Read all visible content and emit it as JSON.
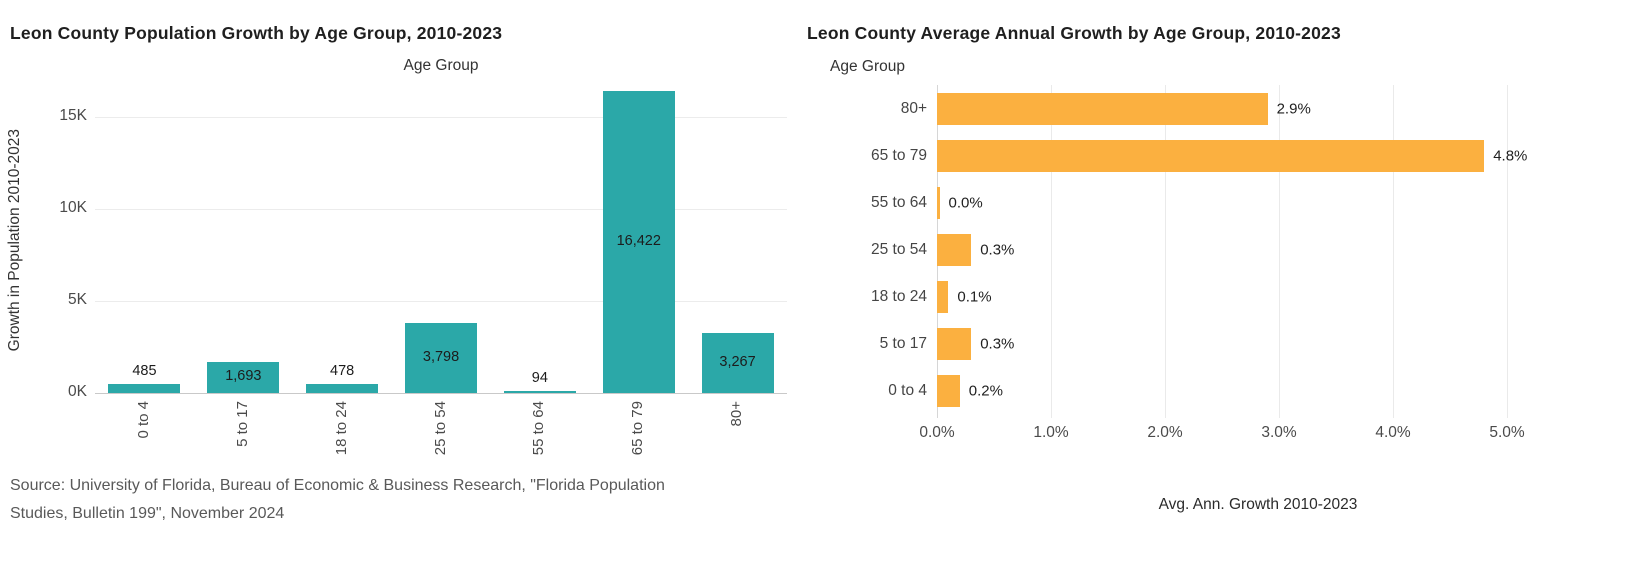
{
  "chart_data": [
    {
      "type": "bar",
      "title": "Leon County Population Growth by Age Group, 2010-2023",
      "xlabel": "Age Group",
      "ylabel": "Growth in Population 2010-2023",
      "categories": [
        "0 to 4",
        "5 to 17",
        "18 to 24",
        "25 to 54",
        "55 to 64",
        "65 to 79",
        "80+"
      ],
      "values": [
        485,
        1693,
        478,
        3798,
        94,
        16422,
        3267
      ],
      "value_labels": [
        "485",
        "1,693",
        "478",
        "3,798",
        "94",
        "16,422",
        "3,267"
      ],
      "yticks": [
        "0K",
        "5K",
        "10K",
        "15K"
      ],
      "ytick_values": [
        0,
        5000,
        10000,
        15000
      ],
      "ylim": [
        0,
        16600
      ],
      "gridlines": "horizontal",
      "legend": "none",
      "bar_color": "#2BA8A8",
      "source_lines": [
        "Source: University of Florida, Bureau of Economic & Business Research, \"Florida Population",
        "Studies, Bulletin 199\", November 2024"
      ]
    },
    {
      "type": "bar-horizontal",
      "title": "Leon County Average Annual Growth by Age Group, 2010-2023",
      "category_axis_label": "Age Group",
      "xlabel": "Avg. Ann. Growth 2010-2023",
      "categories": [
        "80+",
        "65 to 79",
        "55 to 64",
        "25 to 54",
        "18 to 24",
        "5 to 17",
        "0 to 4"
      ],
      "values": [
        2.9,
        4.8,
        0.0,
        0.3,
        0.1,
        0.3,
        0.2
      ],
      "value_labels": [
        "2.9%",
        "4.8%",
        "0.0%",
        "0.3%",
        "0.1%",
        "0.3%",
        "0.2%"
      ],
      "xticks": [
        "0.0%",
        "1.0%",
        "2.0%",
        "3.0%",
        "4.0%",
        "5.0%"
      ],
      "xtick_values": [
        0,
        1,
        2,
        3,
        4,
        5
      ],
      "xlim": [
        0,
        5.0
      ],
      "gridlines": "vertical",
      "legend": "none",
      "bar_color": "#FBB040"
    }
  ]
}
